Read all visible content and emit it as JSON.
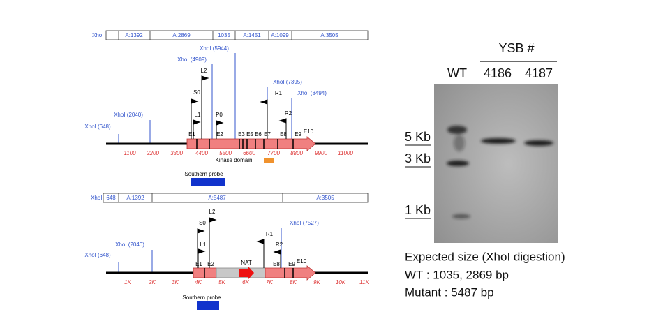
{
  "top_map": {
    "fragment_label": "XhoI",
    "fragments": [
      "A:1392",
      "A:2869",
      "1035",
      "A:1451",
      "A:1099",
      "A:3505"
    ],
    "sites": [
      "XhoI (648)",
      "XhoI (2040)",
      "XhoI (4909)",
      "XhoI (5944)",
      "XhoI (7395)",
      "XhoI (8494)"
    ],
    "primers": [
      "S0",
      "L1",
      "L2",
      "P0",
      "R1",
      "R2"
    ],
    "exons": [
      "E1",
      "E2",
      "E3",
      "E5",
      "E6",
      "E7",
      "E8",
      "E9",
      "E10"
    ],
    "ticks": [
      "1100",
      "2200",
      "3300",
      "4400",
      "5500",
      "6600",
      "7700",
      "8800",
      "9900",
      "11000"
    ],
    "domain": "Kinase domain",
    "probe": "Southern probe"
  },
  "bottom_map": {
    "fragment_label": "XhoI",
    "fragments": [
      "648",
      "A:1392",
      "A:5487",
      "A:3505"
    ],
    "sites": [
      "XhoI (648)",
      "XhoI (2040)",
      "XhoI (7527)"
    ],
    "primers": [
      "S0",
      "L1",
      "L2",
      "R1",
      "R2"
    ],
    "exons": [
      "E1",
      "E2",
      "NAT",
      "E8",
      "E9",
      "E10"
    ],
    "ticks": [
      "1K",
      "2K",
      "3K",
      "4K",
      "5K",
      "6K",
      "7K",
      "8K",
      "9K",
      "10K",
      "11K"
    ],
    "probe": "Southern probe"
  },
  "blot": {
    "group": "YSB #",
    "lanes": [
      "WT",
      "4186",
      "4187"
    ],
    "markers": [
      "5 Kb",
      "3 Kb",
      "1 Kb"
    ],
    "caption": [
      "Expected size (XhoI digestion)",
      "WT : 1035, 2869 bp",
      "Mutant : 5487 bp"
    ]
  }
}
